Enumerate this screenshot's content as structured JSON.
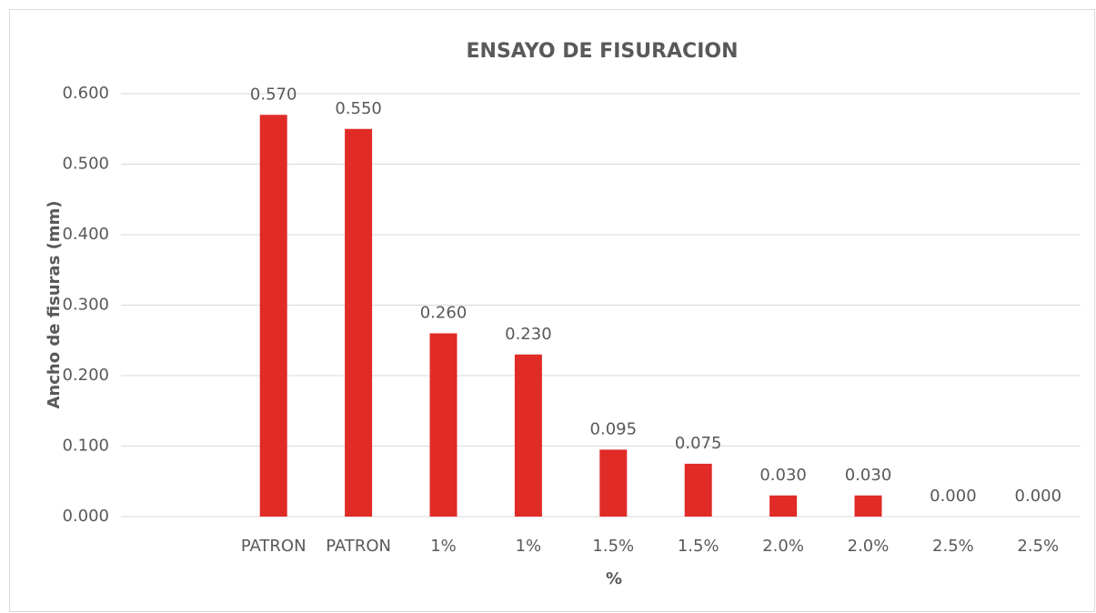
{
  "chart_data": {
    "type": "bar",
    "title": "ENSAYO DE FISURACION",
    "x_label": "%",
    "y_label": "Ancho de fisuras (mm)",
    "categories": [
      null,
      "PATRON",
      "PATRON",
      "1%",
      "1%",
      "1.5%",
      "1.5%",
      "2.0%",
      "2.0%",
      "2.5%",
      "2.5%"
    ],
    "values": [
      null,
      0.57,
      0.55,
      0.26,
      0.23,
      0.095,
      0.075,
      0.03,
      0.03,
      0,
      0
    ],
    "value_labels": [
      null,
      "0.570",
      "0.550",
      "0.260",
      "0.230",
      "0.095",
      "0.075",
      "0.030",
      "0.030",
      "0.000",
      "0.000"
    ],
    "color": "#e02b27",
    "ylim": [
      0,
      0.6
    ],
    "yticks": [
      {
        "value": 0,
        "label": "0.000"
      },
      {
        "value": 0.1,
        "label": "0.100"
      },
      {
        "value": 0.2,
        "label": "0.200"
      },
      {
        "value": 0.3,
        "label": "0.300"
      },
      {
        "value": 0.4,
        "label": "0.400"
      },
      {
        "value": 0.5,
        "label": "0.500"
      },
      {
        "value": 0.6,
        "label": "0.600"
      }
    ],
    "grid": true
  }
}
